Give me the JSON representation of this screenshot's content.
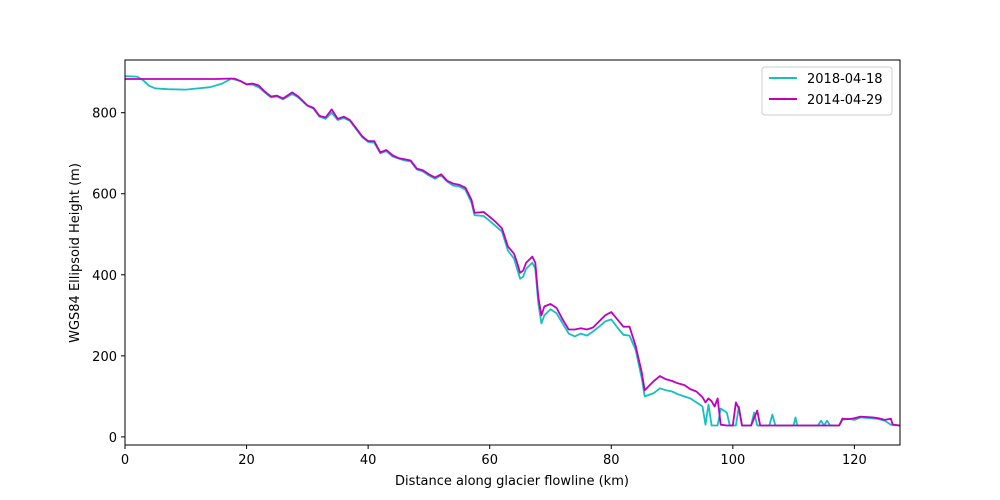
{
  "chart_data": {
    "type": "line",
    "title": "",
    "xlabel": "Distance along glacier flowline (km)",
    "ylabel": "WGS84 Ellipsoid Height (m)",
    "xlim": [
      0,
      127.5
    ],
    "ylim": [
      -20,
      930
    ],
    "xticks": [
      0,
      20,
      40,
      60,
      80,
      100,
      120
    ],
    "yticks": [
      0,
      200,
      400,
      600,
      800
    ],
    "grid": false,
    "legend_position": "top-right",
    "series": [
      {
        "name": "2018-04-18",
        "color": "#17bfbf",
        "points": [
          [
            0,
            890
          ],
          [
            2,
            889
          ],
          [
            3,
            880
          ],
          [
            4,
            866
          ],
          [
            5,
            860
          ],
          [
            7,
            858
          ],
          [
            10,
            857
          ],
          [
            12,
            860
          ],
          [
            14,
            863
          ],
          [
            16,
            872
          ],
          [
            17.5,
            884
          ],
          [
            19,
            878
          ],
          [
            20,
            870
          ],
          [
            21,
            869
          ],
          [
            22,
            863
          ],
          [
            23,
            850
          ],
          [
            24,
            838
          ],
          [
            25,
            840
          ],
          [
            26,
            833
          ],
          [
            27.5,
            846
          ],
          [
            28.5,
            838
          ],
          [
            30,
            817
          ],
          [
            31,
            810
          ],
          [
            32,
            790
          ],
          [
            33,
            785
          ],
          [
            34,
            800
          ],
          [
            35,
            782
          ],
          [
            36,
            787
          ],
          [
            37,
            780
          ],
          [
            38,
            760
          ],
          [
            39,
            740
          ],
          [
            40,
            728
          ],
          [
            41,
            726
          ],
          [
            42,
            700
          ],
          [
            43,
            705
          ],
          [
            44,
            692
          ],
          [
            45,
            687
          ],
          [
            46,
            682
          ],
          [
            47,
            680
          ],
          [
            48,
            660
          ],
          [
            49,
            655
          ],
          [
            50,
            645
          ],
          [
            51,
            637
          ],
          [
            52,
            645
          ],
          [
            53,
            630
          ],
          [
            54,
            620
          ],
          [
            55,
            618
          ],
          [
            56,
            610
          ],
          [
            57,
            578
          ],
          [
            57.5,
            547
          ],
          [
            59,
            545
          ],
          [
            60,
            533
          ],
          [
            61,
            520
          ],
          [
            62,
            507
          ],
          [
            63,
            460
          ],
          [
            64,
            440
          ],
          [
            64.5,
            415
          ],
          [
            65,
            390
          ],
          [
            65.5,
            395
          ],
          [
            66,
            415
          ],
          [
            67,
            430
          ],
          [
            67.5,
            415
          ],
          [
            68,
            330
          ],
          [
            68.5,
            280
          ],
          [
            69,
            300
          ],
          [
            70,
            315
          ],
          [
            71,
            305
          ],
          [
            72,
            280
          ],
          [
            73,
            255
          ],
          [
            74,
            248
          ],
          [
            75,
            255
          ],
          [
            76,
            250
          ],
          [
            77,
            260
          ],
          [
            78,
            272
          ],
          [
            79,
            285
          ],
          [
            80,
            290
          ],
          [
            81,
            270
          ],
          [
            82,
            252
          ],
          [
            83,
            250
          ],
          [
            84,
            215
          ],
          [
            85,
            145
          ],
          [
            85.5,
            100
          ],
          [
            87,
            108
          ],
          [
            88,
            120
          ],
          [
            89,
            115
          ],
          [
            90,
            112
          ],
          [
            91,
            105
          ],
          [
            92,
            100
          ],
          [
            93,
            95
          ],
          [
            94,
            85
          ],
          [
            95,
            75
          ],
          [
            95.5,
            30
          ],
          [
            96,
            80
          ],
          [
            96.5,
            28
          ],
          [
            97.5,
            28
          ],
          [
            98,
            70
          ],
          [
            99,
            60
          ],
          [
            99.5,
            28
          ],
          [
            100.5,
            28
          ],
          [
            101,
            75
          ],
          [
            101.5,
            28
          ],
          [
            103,
            28
          ],
          [
            103.5,
            60
          ],
          [
            104,
            28
          ],
          [
            106,
            28
          ],
          [
            106.5,
            55
          ],
          [
            107,
            28
          ],
          [
            110,
            28
          ],
          [
            110.3,
            48
          ],
          [
            110.6,
            28
          ],
          [
            114,
            28
          ],
          [
            114.5,
            40
          ],
          [
            115,
            28
          ],
          [
            115.5,
            40
          ],
          [
            116,
            28
          ],
          [
            117.5,
            28
          ],
          [
            118,
            42
          ],
          [
            119,
            45
          ],
          [
            120,
            42
          ],
          [
            121,
            48
          ],
          [
            122,
            47
          ],
          [
            123,
            46
          ],
          [
            124,
            44
          ],
          [
            125,
            40
          ],
          [
            126,
            30
          ],
          [
            127.5,
            28
          ]
        ]
      },
      {
        "name": "2014-04-29",
        "color": "#bf00bf",
        "points": [
          [
            0,
            883
          ],
          [
            5,
            883
          ],
          [
            10,
            883
          ],
          [
            15,
            883
          ],
          [
            17,
            884
          ],
          [
            18,
            884
          ],
          [
            19,
            878
          ],
          [
            20,
            870
          ],
          [
            21,
            872
          ],
          [
            22,
            867
          ],
          [
            23,
            852
          ],
          [
            24,
            840
          ],
          [
            25,
            842
          ],
          [
            26,
            835
          ],
          [
            27.5,
            850
          ],
          [
            28.5,
            840
          ],
          [
            30,
            818
          ],
          [
            31,
            812
          ],
          [
            32,
            792
          ],
          [
            33,
            788
          ],
          [
            34,
            808
          ],
          [
            35,
            785
          ],
          [
            36,
            790
          ],
          [
            37,
            782
          ],
          [
            38,
            762
          ],
          [
            39,
            742
          ],
          [
            40,
            730
          ],
          [
            41,
            730
          ],
          [
            42,
            702
          ],
          [
            43,
            708
          ],
          [
            44,
            695
          ],
          [
            45,
            688
          ],
          [
            46,
            685
          ],
          [
            47,
            682
          ],
          [
            48,
            662
          ],
          [
            49,
            658
          ],
          [
            50,
            648
          ],
          [
            51,
            640
          ],
          [
            52,
            648
          ],
          [
            53,
            632
          ],
          [
            54,
            625
          ],
          [
            55,
            622
          ],
          [
            56,
            615
          ],
          [
            57,
            585
          ],
          [
            57.5,
            553
          ],
          [
            59,
            555
          ],
          [
            60,
            543
          ],
          [
            61,
            530
          ],
          [
            62,
            515
          ],
          [
            63,
            470
          ],
          [
            64,
            452
          ],
          [
            64.5,
            430
          ],
          [
            65,
            405
          ],
          [
            65.5,
            410
          ],
          [
            66,
            430
          ],
          [
            67,
            445
          ],
          [
            67.5,
            430
          ],
          [
            68,
            345
          ],
          [
            68.5,
            300
          ],
          [
            69,
            322
          ],
          [
            70,
            328
          ],
          [
            71,
            318
          ],
          [
            72,
            290
          ],
          [
            73,
            265
          ],
          [
            74,
            265
          ],
          [
            75,
            268
          ],
          [
            76,
            265
          ],
          [
            77,
            270
          ],
          [
            78,
            285
          ],
          [
            79,
            300
          ],
          [
            80,
            308
          ],
          [
            81,
            290
          ],
          [
            82,
            272
          ],
          [
            83,
            272
          ],
          [
            84,
            225
          ],
          [
            85,
            160
          ],
          [
            85.5,
            115
          ],
          [
            87,
            138
          ],
          [
            88,
            150
          ],
          [
            89,
            142
          ],
          [
            90,
            138
          ],
          [
            91,
            132
          ],
          [
            92,
            128
          ],
          [
            93,
            118
          ],
          [
            94,
            112
          ],
          [
            95,
            98
          ],
          [
            95.5,
            85
          ],
          [
            96,
            95
          ],
          [
            96.5,
            88
          ],
          [
            97,
            75
          ],
          [
            97.5,
            95
          ],
          [
            98,
            30
          ],
          [
            99,
            28
          ],
          [
            100,
            28
          ],
          [
            100.5,
            85
          ],
          [
            101,
            70
          ],
          [
            101.5,
            28
          ],
          [
            103,
            28
          ],
          [
            104,
            65
          ],
          [
            104.5,
            28
          ],
          [
            110,
            28
          ],
          [
            115,
            28
          ],
          [
            117.5,
            28
          ],
          [
            118,
            45
          ],
          [
            119,
            44
          ],
          [
            120,
            46
          ],
          [
            121,
            50
          ],
          [
            122,
            49
          ],
          [
            123,
            48
          ],
          [
            124,
            46
          ],
          [
            125,
            42
          ],
          [
            126,
            45
          ],
          [
            126.3,
            30
          ],
          [
            127.5,
            28
          ]
        ]
      }
    ]
  }
}
